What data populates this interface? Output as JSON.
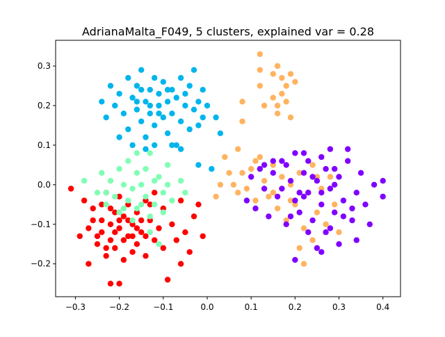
{
  "chart_data": {
    "type": "scatter",
    "title": "AdrianaMalta_F049, 5 clusters, explained var = 0.28",
    "xlabel": "",
    "ylabel": "",
    "xlim": [
      -0.345,
      0.44
    ],
    "ylim": [
      -0.283,
      0.365
    ],
    "xticks": [
      -0.3,
      -0.2,
      -0.1,
      0.0,
      0.1,
      0.2,
      0.3,
      0.4
    ],
    "xtick_labels": [
      "−0.3",
      "−0.2",
      "−0.1",
      "0.0",
      "0.1",
      "0.2",
      "0.3",
      "0.4"
    ],
    "yticks": [
      -0.2,
      -0.1,
      0.0,
      0.1,
      0.2,
      0.3
    ],
    "ytick_labels": [
      "−0.2",
      "−0.1",
      "0.0",
      "0.1",
      "0.2",
      "0.3"
    ],
    "grid": false,
    "legend": "none",
    "series": [
      {
        "color": "#ff0000",
        "points": [
          [
            -0.31,
            -0.01
          ],
          [
            -0.29,
            -0.13
          ],
          [
            -0.28,
            -0.04
          ],
          [
            -0.27,
            -0.2
          ],
          [
            -0.26,
            -0.09
          ],
          [
            -0.25,
            -0.15
          ],
          [
            -0.24,
            -0.05
          ],
          [
            -0.24,
            -0.12
          ],
          [
            -0.23,
            -0.18
          ],
          [
            -0.23,
            -0.02
          ],
          [
            -0.22,
            -0.1
          ],
          [
            -0.22,
            -0.14
          ],
          [
            -0.21,
            -0.07
          ],
          [
            -0.21,
            -0.16
          ],
          [
            -0.2,
            -0.11
          ],
          [
            -0.2,
            -0.03
          ],
          [
            -0.19,
            -0.19
          ],
          [
            -0.19,
            -0.08
          ],
          [
            -0.18,
            -0.13
          ],
          [
            -0.18,
            -0.05
          ],
          [
            -0.17,
            -0.17
          ],
          [
            -0.17,
            -0.1
          ],
          [
            -0.16,
            -0.15
          ],
          [
            -0.16,
            -0.07
          ],
          [
            -0.15,
            -0.12
          ],
          [
            -0.14,
            -0.18
          ],
          [
            -0.14,
            -0.04
          ],
          [
            -0.13,
            -0.09
          ],
          [
            -0.12,
            -0.14
          ],
          [
            -0.12,
            -0.02
          ],
          [
            -0.11,
            -0.11
          ],
          [
            -0.1,
            -0.16
          ],
          [
            -0.1,
            -0.06
          ],
          [
            -0.09,
            -0.24
          ],
          [
            -0.08,
            -0.1
          ],
          [
            -0.07,
            -0.14
          ],
          [
            -0.06,
            -0.2
          ],
          [
            -0.06,
            -0.04
          ],
          [
            -0.05,
            -0.12
          ],
          [
            -0.04,
            -0.17
          ],
          [
            -0.03,
            -0.08
          ],
          [
            -0.02,
            -0.05
          ],
          [
            -0.01,
            -0.13
          ],
          [
            -0.22,
            -0.25
          ],
          [
            -0.2,
            -0.25
          ],
          [
            -0.26,
            -0.06
          ],
          [
            -0.24,
            -0.09
          ],
          [
            -0.22,
            -0.06
          ],
          [
            -0.2,
            -0.09
          ],
          [
            -0.18,
            -0.09
          ],
          [
            -0.16,
            -0.11
          ],
          [
            -0.14,
            -0.13
          ],
          [
            -0.25,
            -0.13
          ],
          [
            -0.21,
            -0.12
          ],
          [
            -0.19,
            -0.14
          ],
          [
            -0.17,
            -0.13
          ],
          [
            -0.23,
            -0.16
          ],
          [
            -0.15,
            -0.09
          ],
          [
            -0.13,
            -0.05
          ],
          [
            -0.27,
            -0.11
          ]
        ]
      },
      {
        "color": "#80ffb4",
        "points": [
          [
            -0.28,
            0.01
          ],
          [
            -0.25,
            -0.02
          ],
          [
            -0.24,
            0.03
          ],
          [
            -0.23,
            -0.05
          ],
          [
            -0.22,
            0.01
          ],
          [
            -0.21,
            -0.03
          ],
          [
            -0.2,
            0.04
          ],
          [
            -0.2,
            -0.07
          ],
          [
            -0.19,
            0.0
          ],
          [
            -0.18,
            -0.04
          ],
          [
            -0.18,
            0.06
          ],
          [
            -0.17,
            -0.01
          ],
          [
            -0.16,
            0.03
          ],
          [
            -0.16,
            -0.06
          ],
          [
            -0.15,
            0.0
          ],
          [
            -0.14,
            -0.03
          ],
          [
            -0.14,
            0.04
          ],
          [
            -0.13,
            -0.08
          ],
          [
            -0.12,
            0.01
          ],
          [
            -0.12,
            -0.05
          ],
          [
            -0.11,
            0.02
          ],
          [
            -0.1,
            -0.02
          ],
          [
            -0.1,
            -0.07
          ],
          [
            -0.09,
            0.0
          ],
          [
            -0.08,
            -0.04
          ],
          [
            -0.06,
            0.01
          ],
          [
            -0.05,
            -0.02
          ],
          [
            -0.16,
            0.08
          ],
          [
            -0.13,
            0.08
          ],
          [
            -0.09,
            0.05
          ],
          [
            -0.23,
            -0.02
          ],
          [
            -0.19,
            -0.06
          ],
          [
            -0.17,
            -0.09
          ],
          [
            -0.15,
            -0.05
          ],
          [
            -0.13,
            -0.12
          ],
          [
            -0.11,
            -0.15
          ]
        ]
      },
      {
        "color": "#00b5eb",
        "points": [
          [
            -0.22,
            0.25
          ],
          [
            -0.21,
            0.2
          ],
          [
            -0.2,
            0.23
          ],
          [
            -0.19,
            0.18
          ],
          [
            -0.18,
            0.27
          ],
          [
            -0.18,
            0.14
          ],
          [
            -0.17,
            0.22
          ],
          [
            -0.16,
            0.19
          ],
          [
            -0.16,
            0.25
          ],
          [
            -0.15,
            0.16
          ],
          [
            -0.15,
            0.29
          ],
          [
            -0.14,
            0.21
          ],
          [
            -0.14,
            0.12
          ],
          [
            -0.13,
            0.24
          ],
          [
            -0.13,
            0.18
          ],
          [
            -0.12,
            0.27
          ],
          [
            -0.12,
            0.15
          ],
          [
            -0.11,
            0.2
          ],
          [
            -0.11,
            0.23
          ],
          [
            -0.1,
            0.17
          ],
          [
            -0.1,
            0.26
          ],
          [
            -0.09,
            0.13
          ],
          [
            -0.09,
            0.21
          ],
          [
            -0.08,
            0.24
          ],
          [
            -0.08,
            0.18
          ],
          [
            -0.07,
            0.22
          ],
          [
            -0.07,
            0.1
          ],
          [
            -0.06,
            0.27
          ],
          [
            -0.06,
            0.16
          ],
          [
            -0.05,
            0.2
          ],
          [
            -0.05,
            0.23
          ],
          [
            -0.04,
            0.14
          ],
          [
            -0.04,
            0.25
          ],
          [
            -0.03,
            0.19
          ],
          [
            -0.03,
            0.29
          ],
          [
            -0.02,
            0.21
          ],
          [
            -0.02,
            0.15
          ],
          [
            -0.01,
            0.24
          ],
          [
            -0.01,
            0.17
          ],
          [
            0.0,
            0.2
          ],
          [
            0.02,
            0.17
          ],
          [
            0.03,
            0.13
          ],
          [
            -0.24,
            0.21
          ],
          [
            -0.23,
            0.17
          ],
          [
            -0.2,
            0.12
          ],
          [
            -0.17,
            0.1
          ],
          [
            -0.14,
            0.09
          ],
          [
            -0.12,
            0.1
          ],
          [
            -0.08,
            0.1
          ],
          [
            -0.06,
            0.09
          ],
          [
            -0.13,
            0.2
          ],
          [
            -0.11,
            0.18
          ],
          [
            -0.09,
            0.24
          ],
          [
            -0.16,
            0.21
          ],
          [
            -0.15,
            0.24
          ],
          [
            -0.02,
            0.05
          ],
          [
            0.01,
            0.04
          ]
        ]
      },
      {
        "color": "#ffb360",
        "points": [
          [
            0.12,
            0.33
          ],
          [
            0.12,
            0.29
          ],
          [
            0.15,
            0.28
          ],
          [
            0.16,
            0.3
          ],
          [
            0.17,
            0.27
          ],
          [
            0.18,
            0.25
          ],
          [
            0.19,
            0.28
          ],
          [
            0.17,
            0.23
          ],
          [
            0.16,
            0.2
          ],
          [
            0.15,
            0.22
          ],
          [
            0.18,
            0.21
          ],
          [
            0.2,
            0.26
          ],
          [
            0.13,
            0.2
          ],
          [
            0.19,
            0.17
          ],
          [
            0.12,
            0.25
          ],
          [
            0.08,
            0.21
          ],
          [
            0.08,
            0.16
          ],
          [
            0.16,
            0.18
          ],
          [
            0.04,
            0.07
          ],
          [
            0.05,
            0.03
          ],
          [
            0.06,
            0.0
          ],
          [
            0.07,
            -0.02
          ],
          [
            0.08,
            0.03
          ],
          [
            0.09,
            -0.01
          ],
          [
            0.1,
            0.04
          ],
          [
            0.11,
            -0.04
          ],
          [
            0.12,
            0.07
          ],
          [
            0.13,
            0.01
          ],
          [
            0.14,
            -0.03
          ],
          [
            0.15,
            0.05
          ],
          [
            0.16,
            -0.06
          ],
          [
            0.17,
            0.02
          ],
          [
            0.18,
            -0.09
          ],
          [
            0.19,
            0.0
          ],
          [
            0.2,
            -0.05
          ],
          [
            0.21,
            0.03
          ],
          [
            0.22,
            -0.11
          ],
          [
            0.23,
            -0.02
          ],
          [
            0.24,
            0.05
          ],
          [
            0.25,
            -0.07
          ],
          [
            0.26,
            -0.01
          ],
          [
            0.27,
            -0.1
          ],
          [
            0.28,
            0.02
          ],
          [
            0.29,
            -0.05
          ],
          [
            0.3,
            -0.12
          ],
          [
            0.21,
            -0.16
          ],
          [
            0.22,
            -0.2
          ],
          [
            0.24,
            -0.14
          ],
          [
            0.02,
            -0.03
          ],
          [
            0.07,
            0.09
          ],
          [
            0.03,
            0.0
          ],
          [
            0.11,
            0.06
          ],
          [
            0.15,
            -0.02
          ],
          [
            0.19,
            -0.04
          ],
          [
            0.25,
            0.02
          ]
        ]
      },
      {
        "color": "#8000ff",
        "points": [
          [
            0.09,
            -0.04
          ],
          [
            0.1,
            0.02
          ],
          [
            0.11,
            -0.06
          ],
          [
            0.12,
            0.04
          ],
          [
            0.13,
            -0.01
          ],
          [
            0.14,
            -0.08
          ],
          [
            0.15,
            0.03
          ],
          [
            0.16,
            -0.03
          ],
          [
            0.17,
            0.06
          ],
          [
            0.18,
            -0.1
          ],
          [
            0.19,
            0.01
          ],
          [
            0.2,
            -0.04
          ],
          [
            0.2,
            0.08
          ],
          [
            0.21,
            -0.07
          ],
          [
            0.22,
            0.03
          ],
          [
            0.23,
            -0.02
          ],
          [
            0.23,
            0.06
          ],
          [
            0.24,
            -0.09
          ],
          [
            0.25,
            0.01
          ],
          [
            0.26,
            -0.05
          ],
          [
            0.26,
            0.07
          ],
          [
            0.27,
            -0.12
          ],
          [
            0.28,
            -0.01
          ],
          [
            0.29,
            0.04
          ],
          [
            0.29,
            -0.07
          ],
          [
            0.3,
            0.02
          ],
          [
            0.31,
            -0.04
          ],
          [
            0.32,
            0.06
          ],
          [
            0.33,
            -0.09
          ],
          [
            0.34,
            -0.02
          ],
          [
            0.35,
            0.03
          ],
          [
            0.36,
            -0.05
          ],
          [
            0.37,
            -0.1
          ],
          [
            0.38,
            0.0
          ],
          [
            0.4,
            -0.03
          ],
          [
            0.4,
            0.01
          ],
          [
            0.34,
            -0.14
          ],
          [
            0.3,
            -0.15
          ],
          [
            0.26,
            -0.17
          ],
          [
            0.2,
            -0.19
          ],
          [
            0.25,
            -0.16
          ],
          [
            0.28,
            -0.11
          ],
          [
            0.32,
            0.09
          ],
          [
            0.28,
            0.09
          ],
          [
            0.22,
            0.08
          ],
          [
            0.15,
            0.06
          ],
          [
            0.17,
            -0.01
          ],
          [
            0.21,
            -0.02
          ],
          [
            0.24,
            0.02
          ],
          [
            0.27,
            0.04
          ],
          [
            0.19,
            -0.08
          ],
          [
            0.23,
            -0.12
          ],
          [
            0.31,
            -0.08
          ],
          [
            0.18,
            0.05
          ],
          [
            0.13,
            0.05
          ],
          [
            0.22,
            -0.03
          ],
          [
            0.26,
            -0.02
          ],
          [
            0.29,
            0.0
          ],
          [
            0.33,
            -0.06
          ]
        ]
      }
    ]
  }
}
